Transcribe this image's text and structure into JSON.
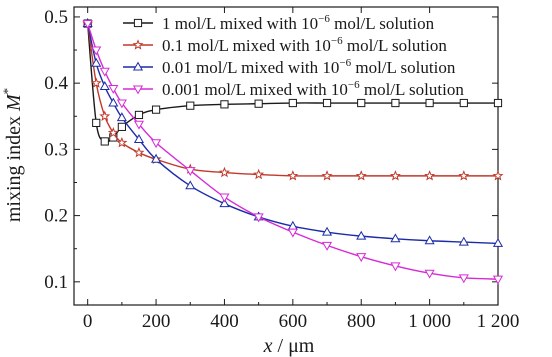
{
  "chart_data": {
    "type": "line",
    "xlabel": {
      "var": "x",
      "unit": " / μm"
    },
    "ylabel": {
      "text": "mixing index ",
      "var": "M",
      "sup": "*"
    },
    "xlim": [
      -40,
      1200
    ],
    "ylim": [
      0.065,
      0.515
    ],
    "x_ticks": [
      0,
      200,
      400,
      600,
      800,
      1000,
      1200
    ],
    "x_tick_labels": [
      "0",
      "200",
      "400",
      "600",
      "800",
      "1 000",
      "1 200"
    ],
    "y_ticks": [
      0.1,
      0.2,
      0.3,
      0.4,
      0.5
    ],
    "y_tick_labels": [
      "0.1",
      "0.2",
      "0.3",
      "0.4",
      "0.5"
    ],
    "legend_position": "top-right",
    "series": [
      {
        "name": "1 mol/L mixed with 10⁻⁶ mol/L solution",
        "legend": {
          "pre": "1 mol/L mixed with 10",
          "sup": "−6",
          "post": " mol/L solution"
        },
        "color": "#1a1a1a",
        "marker": "square",
        "x": [
          0,
          25,
          50,
          75,
          100,
          150,
          200,
          300,
          400,
          500,
          600,
          700,
          800,
          900,
          1000,
          1100,
          1200
        ],
        "y": [
          0.49,
          0.34,
          0.312,
          0.318,
          0.334,
          0.352,
          0.36,
          0.366,
          0.368,
          0.369,
          0.37,
          0.37,
          0.37,
          0.37,
          0.37,
          0.37,
          0.37
        ]
      },
      {
        "name": "0.1 mol/L mixed with 10⁻⁶ mol/L solution",
        "legend": {
          "pre": "0.1 mol/L mixed with 10",
          "sup": "−6",
          "post": " mol/L solution"
        },
        "color": "#c0392b",
        "marker": "star",
        "x": [
          0,
          25,
          50,
          75,
          100,
          150,
          200,
          300,
          400,
          500,
          600,
          700,
          800,
          900,
          1000,
          1100,
          1200
        ],
        "y": [
          0.49,
          0.4,
          0.35,
          0.325,
          0.31,
          0.295,
          0.285,
          0.27,
          0.265,
          0.262,
          0.26,
          0.26,
          0.26,
          0.26,
          0.26,
          0.26,
          0.26
        ]
      },
      {
        "name": "0.01 mol/L mixed with 10⁻⁶ mol/L solution",
        "legend": {
          "pre": "0.01 mol/L mixed with 10",
          "sup": "−6",
          "post": " mol/L solution"
        },
        "color": "#1c2ca8",
        "marker": "triangle-up",
        "x": [
          0,
          25,
          50,
          75,
          100,
          150,
          200,
          300,
          400,
          500,
          600,
          700,
          800,
          900,
          1000,
          1100,
          1200
        ],
        "y": [
          0.49,
          0.43,
          0.395,
          0.37,
          0.348,
          0.315,
          0.285,
          0.245,
          0.218,
          0.198,
          0.184,
          0.175,
          0.169,
          0.165,
          0.162,
          0.16,
          0.158
        ]
      },
      {
        "name": "0.001 mol/L mixed with 10⁻⁶ mol/L solution",
        "legend": {
          "pre": "0.001 mol/L mixed with 10",
          "sup": "−6",
          "post": " mol/L solution"
        },
        "color": "#d62ad6",
        "marker": "triangle-down",
        "x": [
          0,
          25,
          50,
          75,
          100,
          150,
          200,
          300,
          400,
          500,
          600,
          700,
          800,
          900,
          1000,
          1100,
          1200
        ],
        "y": [
          0.49,
          0.45,
          0.418,
          0.392,
          0.37,
          0.338,
          0.31,
          0.268,
          0.228,
          0.198,
          0.175,
          0.155,
          0.138,
          0.124,
          0.113,
          0.106,
          0.104
        ]
      }
    ]
  }
}
